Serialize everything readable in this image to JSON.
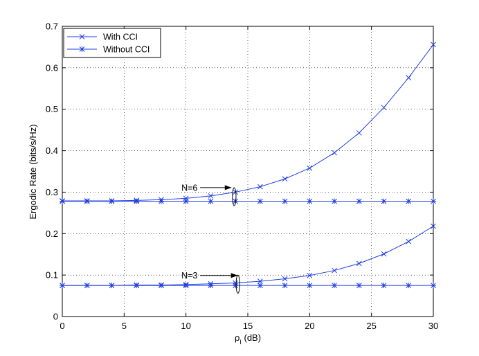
{
  "chart_data": {
    "type": "line",
    "xlabel_main": "ρ",
    "xlabel_sub": "I",
    "xlabel_unit": " (dB)",
    "ylabel": "Ergodic Rate (bits/s/Hz)",
    "xlim": [
      0,
      30
    ],
    "ylim": [
      0,
      0.7
    ],
    "xticks": [
      0,
      5,
      10,
      15,
      20,
      25,
      30
    ],
    "yticks": [
      0,
      0.1,
      0.2,
      0.3,
      0.4,
      0.5,
      0.6,
      0.7
    ],
    "xtick_labels": [
      "0",
      "5",
      "10",
      "15",
      "20",
      "25",
      "30"
    ],
    "ytick_labels": [
      "0",
      "0.1",
      "0.2",
      "0.3",
      "0.4",
      "0.5",
      "0.6",
      "0.7"
    ],
    "grid": true,
    "legend_position": "top-left",
    "color": "#1f3fe0",
    "legend": [
      {
        "label": "With CCI",
        "marker": "x"
      },
      {
        "label": "Without CCI",
        "marker": "star"
      }
    ],
    "x": [
      0,
      2,
      4,
      6,
      8,
      10,
      12,
      14,
      16,
      18,
      20,
      22,
      24,
      26,
      28,
      30
    ],
    "series": [
      {
        "group": "N=6",
        "marker": "x",
        "values": [
          0.279,
          0.279,
          0.279,
          0.28,
          0.282,
          0.285,
          0.291,
          0.3,
          0.313,
          0.332,
          0.358,
          0.395,
          0.443,
          0.504,
          0.576,
          0.656
        ]
      },
      {
        "group": "N=6",
        "marker": "star",
        "values": [
          0.278,
          0.278,
          0.278,
          0.278,
          0.278,
          0.278,
          0.278,
          0.278,
          0.278,
          0.278,
          0.278,
          0.278,
          0.278,
          0.278,
          0.278,
          0.278
        ]
      },
      {
        "group": "N=3",
        "marker": "x",
        "values": [
          0.075,
          0.075,
          0.075,
          0.076,
          0.076,
          0.077,
          0.079,
          0.081,
          0.085,
          0.091,
          0.099,
          0.111,
          0.128,
          0.151,
          0.181,
          0.218
        ]
      },
      {
        "group": "N=3",
        "marker": "star",
        "values": [
          0.075,
          0.075,
          0.075,
          0.075,
          0.075,
          0.075,
          0.075,
          0.075,
          0.075,
          0.075,
          0.075,
          0.075,
          0.075,
          0.075,
          0.075,
          0.075
        ]
      }
    ],
    "annotations": [
      {
        "text": "N=6",
        "text_x": 9.8,
        "text_y": 0.311,
        "arrow_to_x": 13.7,
        "arrow_to_y": 0.311,
        "ellipse_x": 13.9,
        "ellipse_y": 0.289
      },
      {
        "text": "N=3",
        "text_x": 9.8,
        "text_y": 0.099,
        "arrow_to_x": 14.2,
        "arrow_to_y": 0.099,
        "ellipse_x": 14.2,
        "ellipse_y": 0.078
      }
    ]
  }
}
